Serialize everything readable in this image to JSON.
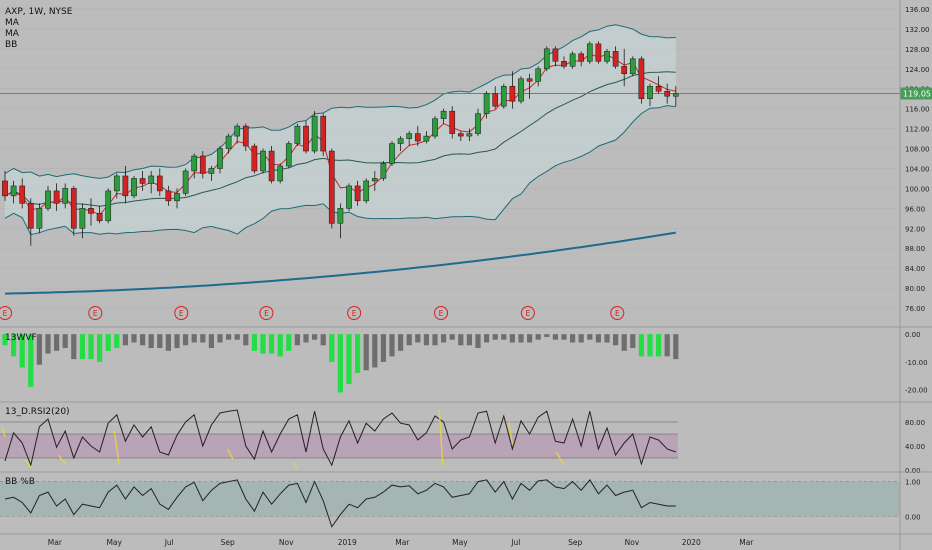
{
  "chart_data": {
    "type": "candlestick",
    "header": {
      "symbol_line": "AXP, 1W, NYSE",
      "indicators": [
        "MA",
        "MA",
        "BB"
      ]
    },
    "colors": {
      "background": "#bcbcbc",
      "up": "#2e9b3f",
      "down": "#d32222",
      "bb_band": "#1f6b75",
      "ma_fast": "#c62828",
      "ma_long": "#1f6b8f",
      "price_line": "#4a9b5a",
      "wvf_bar": "#6e6e6e",
      "wvf_alert": "#22dd44",
      "rsi_line": "#222222",
      "rsi_zone": "#b79bb5",
      "rsi_signal": "#e8d24a",
      "bb_pct_line": "#222222",
      "bb_pct_zone": "#9fb3b0",
      "earnings": "#d32222"
    },
    "price_axis": {
      "range": [
        74,
        137
      ],
      "ticks": [
        76,
        80,
        84,
        88,
        92,
        96,
        100,
        104,
        108,
        112,
        116,
        120,
        124,
        128,
        132,
        136
      ],
      "tick_labels": [
        "76.00",
        "80.00",
        "84.00",
        "88.00",
        "92.00",
        "96.00",
        "100.00",
        "104.00",
        "108.00",
        "112.00",
        "116.00",
        "120.00",
        "124.00",
        "128.00",
        "132.00",
        "136.00"
      ],
      "last_price": 119.05,
      "last_price_label": "119.05"
    },
    "time_axis": {
      "labels": [
        {
          "week": 5.8,
          "text": "Mar"
        },
        {
          "week": 12.7,
          "text": "May"
        },
        {
          "week": 19.1,
          "text": "Jul"
        },
        {
          "week": 25.9,
          "text": "Sep"
        },
        {
          "week": 32.7,
          "text": "Nov"
        },
        {
          "week": 39.8,
          "text": "2019"
        },
        {
          "week": 46.2,
          "text": "Mar"
        },
        {
          "week": 52.9,
          "text": "May"
        },
        {
          "week": 59.4,
          "text": "Jul"
        },
        {
          "week": 66.3,
          "text": "Sep"
        },
        {
          "week": 72.9,
          "text": "Nov"
        },
        {
          "week": 79.8,
          "text": "2020"
        },
        {
          "week": 86.2,
          "text": "Mar"
        }
      ]
    },
    "earnings_markers": {
      "weeks": [
        0,
        10.5,
        20.5,
        30.4,
        40.6,
        50.7,
        60.8,
        71.2
      ],
      "label": "E"
    },
    "candles": [
      [
        101.5,
        103.5,
        97.5,
        98.5
      ],
      [
        98.5,
        101.5,
        97,
        100.5
      ],
      [
        100.5,
        102,
        96,
        97
      ],
      [
        97,
        98,
        88.5,
        92
      ],
      [
        92,
        97,
        91,
        96
      ],
      [
        96,
        100.5,
        95.5,
        99.5
      ],
      [
        99.5,
        101,
        95.5,
        97
      ],
      [
        97,
        101,
        96,
        100
      ],
      [
        100,
        100.5,
        90.5,
        92
      ],
      [
        92,
        97,
        90,
        96
      ],
      [
        96,
        98,
        92.5,
        95
      ],
      [
        95,
        96.5,
        93,
        93.5
      ],
      [
        93.5,
        100,
        93,
        99.5
      ],
      [
        99.5,
        103,
        98,
        102.5
      ],
      [
        102.5,
        104.5,
        97,
        98.5
      ],
      [
        98.5,
        102.5,
        98,
        102
      ],
      [
        102,
        103.5,
        99.5,
        101
      ],
      [
        101,
        103.5,
        99,
        102.5
      ],
      [
        102.5,
        104,
        98.5,
        99.5
      ],
      [
        99.5,
        100.5,
        96.5,
        97.5
      ],
      [
        97.5,
        100,
        96,
        99
      ],
      [
        99,
        104,
        98.5,
        103.5
      ],
      [
        103.5,
        107,
        102,
        106.5
      ],
      [
        106.5,
        107.5,
        102,
        103
      ],
      [
        103,
        104.5,
        101.5,
        104
      ],
      [
        104,
        108.5,
        103,
        108
      ],
      [
        108,
        111,
        107,
        110.5
      ],
      [
        110.5,
        113,
        109,
        112.5
      ],
      [
        112.5,
        113,
        107.5,
        108.5
      ],
      [
        108.5,
        109,
        103,
        103.5
      ],
      [
        103.5,
        108,
        103,
        107.5
      ],
      [
        107.5,
        108.5,
        101,
        101.5
      ],
      [
        101.5,
        105,
        101,
        104.5
      ],
      [
        104.5,
        109.5,
        104,
        109
      ],
      [
        109,
        113,
        108.5,
        112.5
      ],
      [
        112.5,
        113.5,
        107,
        107.5
      ],
      [
        107.5,
        115.5,
        107,
        114.5
      ],
      [
        114.5,
        115,
        106.5,
        107.5
      ],
      [
        107.5,
        108,
        92,
        93
      ],
      [
        93,
        97,
        90,
        96
      ],
      [
        96,
        101,
        95.5,
        100.5
      ],
      [
        100.5,
        101.5,
        96.5,
        97.5
      ],
      [
        97.5,
        102,
        97,
        101.5
      ],
      [
        101.5,
        103.5,
        99.5,
        102
      ],
      [
        102,
        105.5,
        101.5,
        105
      ],
      [
        105,
        109.5,
        104.5,
        109
      ],
      [
        109,
        110.5,
        107.5,
        110
      ],
      [
        110,
        111.5,
        108.5,
        111
      ],
      [
        111,
        112.5,
        108.5,
        109.5
      ],
      [
        109.5,
        111.5,
        109,
        110.5
      ],
      [
        110.5,
        114.5,
        110,
        114
      ],
      [
        114,
        116,
        113,
        115.5
      ],
      [
        115.5,
        116.5,
        110,
        111
      ],
      [
        111,
        111.5,
        109.5,
        110.5
      ],
      [
        110.5,
        112,
        109.5,
        111
      ],
      [
        111,
        116,
        110.5,
        115
      ],
      [
        115,
        119.5,
        114,
        119
      ],
      [
        119,
        120.5,
        116,
        116.5
      ],
      [
        116.5,
        121,
        116,
        120.5
      ],
      [
        120.5,
        123.5,
        116,
        117.5
      ],
      [
        117.5,
        122.5,
        117,
        122
      ],
      [
        122,
        123,
        118,
        121.5
      ],
      [
        121.5,
        124.5,
        120.5,
        124
      ],
      [
        124,
        128.5,
        123.5,
        128
      ],
      [
        128,
        128.5,
        124.5,
        125.5
      ],
      [
        125.5,
        126.5,
        124,
        124.5
      ],
      [
        124.5,
        127.5,
        124,
        127
      ],
      [
        127,
        127.5,
        124.5,
        125.5
      ],
      [
        125.5,
        129.5,
        125,
        129
      ],
      [
        129,
        129.5,
        125,
        125.5
      ],
      [
        125.5,
        128,
        125,
        127.5
      ],
      [
        127.5,
        128.5,
        124,
        124.5
      ],
      [
        124.5,
        128,
        120.5,
        123
      ],
      [
        123,
        126.5,
        122.5,
        126
      ],
      [
        126,
        126.5,
        117,
        118
      ],
      [
        118,
        121,
        116.5,
        120.5
      ],
      [
        120.5,
        122.5,
        119,
        119.5
      ],
      [
        119.5,
        121,
        117,
        118.5
      ],
      [
        118.5,
        120.5,
        116.5,
        119
      ]
    ],
    "indicators": {
      "wvf": {
        "label": "13WVF",
        "range": [
          -23,
          1.5
        ],
        "ticks": [
          0,
          -10,
          -20
        ],
        "tick_labels": [
          "0.00",
          "-10.00",
          "-20.00"
        ],
        "values": [
          -4,
          -8,
          -12,
          -19,
          -11,
          -7,
          -6,
          -5,
          -9,
          -9,
          -9,
          -10,
          -6,
          -5,
          -4,
          -3,
          -4,
          -5,
          -5,
          -6,
          -5,
          -4,
          -3,
          -3,
          -5,
          -3,
          -2,
          -2,
          -4,
          -6,
          -7,
          -7,
          -8,
          -6,
          -4,
          -3,
          -2,
          -4,
          -10,
          -21,
          -18,
          -14,
          -13,
          -12,
          -10,
          -8,
          -6,
          -4,
          -3,
          -4,
          -4,
          -3,
          -2,
          -4,
          -4,
          -5,
          -3,
          -2,
          -2,
          -3,
          -3,
          -3,
          -2,
          -1,
          -2,
          -2,
          -3,
          -3,
          -2,
          -3,
          -3,
          -4,
          -6,
          -5,
          -8,
          -8,
          -8,
          -8,
          -9
        ],
        "alerts": [
          1,
          1,
          1,
          1,
          0,
          0,
          0,
          0,
          0,
          1,
          1,
          1,
          1,
          1,
          0,
          0,
          0,
          0,
          0,
          0,
          0,
          0,
          0,
          0,
          0,
          0,
          0,
          0,
          0,
          1,
          1,
          1,
          1,
          1,
          0,
          0,
          0,
          0,
          1,
          1,
          1,
          1,
          0,
          0,
          0,
          0,
          0,
          0,
          0,
          0,
          0,
          0,
          0,
          0,
          0,
          0,
          0,
          0,
          0,
          0,
          0,
          0,
          0,
          0,
          0,
          0,
          0,
          0,
          0,
          0,
          0,
          0,
          0,
          0,
          1,
          1,
          1,
          0,
          0
        ]
      },
      "rsi2": {
        "label": "13_D.RSI2(20)",
        "range": [
          0,
          110
        ],
        "ticks": [
          0,
          40,
          80
        ],
        "tick_labels": [
          "0.00",
          "40.00",
          "80.00"
        ],
        "zone": [
          20,
          60
        ],
        "bands": [
          20,
          60,
          80
        ],
        "values": [
          15,
          62,
          45,
          8,
          72,
          85,
          38,
          65,
          20,
          55,
          40,
          30,
          78,
          92,
          48,
          75,
          55,
          72,
          30,
          25,
          58,
          80,
          92,
          40,
          75,
          95,
          98,
          100,
          40,
          18,
          65,
          30,
          60,
          85,
          92,
          30,
          98,
          35,
          8,
          55,
          82,
          45,
          78,
          65,
          85,
          95,
          78,
          75,
          50,
          62,
          90,
          80,
          35,
          50,
          55,
          95,
          98,
          45,
          90,
          35,
          82,
          60,
          88,
          98,
          48,
          45,
          85,
          40,
          98,
          35,
          70,
          25,
          45,
          60,
          10,
          55,
          50,
          35,
          30
        ],
        "signals": [
          [
            -0.3,
            70,
            0,
            55
          ],
          [
            2.3,
            18,
            3,
            5
          ],
          [
            6.2,
            25,
            7,
            10
          ],
          [
            12.7,
            65,
            13.3,
            8
          ],
          [
            25.9,
            35,
            26.5,
            18
          ],
          [
            33.7,
            12,
            34,
            2
          ],
          [
            50.5,
            100,
            50.9,
            8
          ],
          [
            58.6,
            80,
            59,
            42
          ],
          [
            64.1,
            30,
            65,
            8
          ]
        ]
      },
      "bb_pct": {
        "label": "BB %B",
        "range": [
          -0.45,
          1.22
        ],
        "ticks": [
          1,
          0
        ],
        "tick_labels": [
          "1.00",
          "0.00"
        ],
        "values": [
          0.5,
          0.55,
          0.4,
          0.1,
          0.6,
          0.7,
          0.3,
          0.5,
          0.05,
          0.35,
          0.3,
          0.25,
          0.7,
          0.9,
          0.5,
          0.85,
          0.6,
          0.8,
          0.35,
          0.2,
          0.55,
          0.85,
          0.98,
          0.45,
          0.75,
          0.95,
          1.0,
          1.05,
          0.5,
          0.15,
          0.7,
          0.35,
          0.65,
          0.9,
          0.95,
          0.4,
          1.0,
          0.45,
          -0.3,
          0.05,
          0.35,
          0.25,
          0.5,
          0.55,
          0.7,
          0.9,
          0.85,
          0.88,
          0.65,
          0.75,
          0.95,
          0.85,
          0.55,
          0.6,
          0.65,
          1.0,
          1.05,
          0.7,
          1.0,
          0.5,
          0.95,
          0.75,
          1.02,
          1.05,
          0.85,
          0.8,
          1.0,
          0.75,
          1.05,
          0.65,
          0.9,
          0.6,
          0.7,
          0.75,
          0.25,
          0.4,
          0.35,
          0.3,
          0.3
        ]
      }
    }
  }
}
